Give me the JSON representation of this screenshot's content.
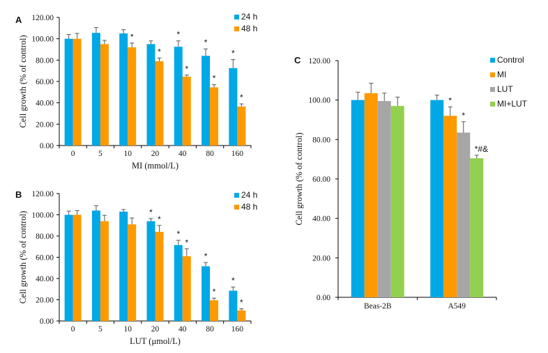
{
  "colors": {
    "blue": "#00a8e6",
    "orange": "#ff9900",
    "gray": "#a6a6a6",
    "green": "#92d050",
    "axis": "#000000",
    "error": "#555555"
  },
  "chart_data": [
    {
      "panel": "A",
      "type": "bar",
      "ylabel": "Cell growth (% of control)",
      "xlabel": "MI (mmol/L)",
      "ylim": [
        0,
        120
      ],
      "yticks": [
        "0.00",
        "20.00",
        "40.00",
        "60.00",
        "80.00",
        "100.00",
        "120.00"
      ],
      "legend_position": "top-right",
      "categories": [
        "0",
        "5",
        "10",
        "20",
        "40",
        "80",
        "160"
      ],
      "series": [
        {
          "name": "24 h",
          "color": "blue",
          "values": [
            100,
            105.5,
            105,
            95,
            92.5,
            84,
            72.5
          ],
          "errors": [
            4,
            5,
            3.5,
            3,
            5.5,
            6.5,
            8
          ],
          "annotations": [
            "",
            "",
            "",
            "",
            "*",
            "*",
            "*"
          ]
        },
        {
          "name": "48 h",
          "color": "orange",
          "values": [
            100,
            95,
            92,
            79,
            64.5,
            54.5,
            36.5
          ],
          "errors": [
            5,
            3.5,
            4,
            3,
            1.5,
            2.5,
            2.5
          ],
          "annotations": [
            "",
            "",
            "*",
            "*",
            "*",
            "*",
            "*"
          ]
        }
      ]
    },
    {
      "panel": "B",
      "type": "bar",
      "ylabel": "Cell growth (% of control)",
      "xlabel": "LUT (μmol/L)",
      "ylim": [
        0,
        120
      ],
      "yticks": [
        "0.00",
        "20.00",
        "40.00",
        "60.00",
        "80.00",
        "100.00",
        "120.00"
      ],
      "legend_position": "top-right",
      "categories": [
        "0",
        "5",
        "10",
        "20",
        "40",
        "80",
        "160"
      ],
      "series": [
        {
          "name": "24 h",
          "color": "blue",
          "values": [
            100,
            104,
            103,
            94,
            71.5,
            51.5,
            28.5
          ],
          "errors": [
            3.5,
            4.5,
            2,
            2.5,
            4.5,
            3.5,
            3.5
          ],
          "annotations": [
            "",
            "",
            "",
            "*",
            "*",
            "*",
            "*"
          ]
        },
        {
          "name": "48 h",
          "color": "orange",
          "values": [
            100,
            94,
            91,
            84,
            61,
            19.5,
            10
          ],
          "errors": [
            4,
            5.5,
            6,
            6,
            7,
            2,
            1.5
          ],
          "annotations": [
            "",
            "",
            "",
            "*",
            "*",
            "*",
            "*"
          ]
        }
      ]
    },
    {
      "panel": "C",
      "type": "bar",
      "ylabel": "Cell growth (% of control)",
      "xlabel": "",
      "ylim": [
        0,
        120
      ],
      "yticks": [
        "0.00",
        "20.00",
        "40.00",
        "60.00",
        "80.00",
        "100.00",
        "120.00"
      ],
      "legend_position": "top-right",
      "categories": [
        "Beas-2B",
        "A549"
      ],
      "series": [
        {
          "name": "Control",
          "color": "blue",
          "values": [
            100,
            100
          ],
          "errors": [
            4,
            2.5
          ],
          "annotations": [
            "",
            ""
          ]
        },
        {
          "name": "MI",
          "color": "orange",
          "values": [
            103.5,
            92
          ],
          "errors": [
            5,
            4.5
          ],
          "annotations": [
            "",
            "*"
          ]
        },
        {
          "name": "LUT",
          "color": "gray",
          "values": [
            99.5,
            83.5
          ],
          "errors": [
            4,
            5.5
          ],
          "annotations": [
            "",
            "*"
          ]
        },
        {
          "name": "MI+LUT",
          "color": "green",
          "values": [
            97,
            70.5
          ],
          "errors": [
            4.5,
            1.5
          ],
          "annotations": [
            "",
            "*#&"
          ]
        }
      ]
    }
  ]
}
